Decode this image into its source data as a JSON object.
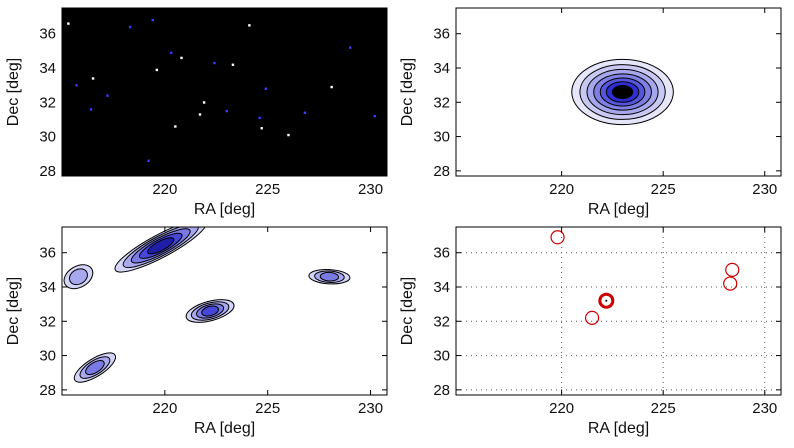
{
  "figure": {
    "colors": {
      "background": "#ffffff",
      "axes_black": "#000000",
      "contour_light": "#c9c9f2",
      "contour_mid": "#8a8ae8",
      "contour_dark": "#2a2ad8",
      "contour_core": "#0a0a66",
      "circle_red": "#cc0000",
      "star_blue": "#3a3aff"
    }
  },
  "chart_data": [
    {
      "id": "panel-a",
      "type": "heatmap",
      "title": "",
      "xlabel": "RA [deg]",
      "ylabel": "Dec [deg]",
      "xlim": [
        215,
        230.8
      ],
      "ylim": [
        27.7,
        37.5
      ],
      "xticks": [
        "220",
        "225",
        "230"
      ],
      "yticks": [
        "28",
        "30",
        "32",
        "34",
        "36"
      ],
      "background": "black",
      "points": [
        {
          "x": 215.3,
          "y": 36.6,
          "c": "white"
        },
        {
          "x": 219.4,
          "y": 36.8,
          "c": "blue"
        },
        {
          "x": 218.3,
          "y": 36.4,
          "c": "blue"
        },
        {
          "x": 224.1,
          "y": 36.5,
          "c": "white"
        },
        {
          "x": 229.0,
          "y": 35.2,
          "c": "blue"
        },
        {
          "x": 220.3,
          "y": 34.9,
          "c": "blue"
        },
        {
          "x": 220.8,
          "y": 34.6,
          "c": "white"
        },
        {
          "x": 222.4,
          "y": 34.3,
          "c": "blue"
        },
        {
          "x": 223.3,
          "y": 34.2,
          "c": "white"
        },
        {
          "x": 219.6,
          "y": 33.9,
          "c": "white"
        },
        {
          "x": 216.5,
          "y": 33.4,
          "c": "white"
        },
        {
          "x": 215.7,
          "y": 33.0,
          "c": "blue"
        },
        {
          "x": 228.1,
          "y": 32.9,
          "c": "white"
        },
        {
          "x": 224.9,
          "y": 32.8,
          "c": "blue"
        },
        {
          "x": 217.2,
          "y": 32.4,
          "c": "blue"
        },
        {
          "x": 221.9,
          "y": 32.0,
          "c": "white"
        },
        {
          "x": 223.0,
          "y": 31.5,
          "c": "blue"
        },
        {
          "x": 216.4,
          "y": 31.6,
          "c": "blue"
        },
        {
          "x": 221.7,
          "y": 31.3,
          "c": "white"
        },
        {
          "x": 224.6,
          "y": 31.1,
          "c": "blue"
        },
        {
          "x": 230.2,
          "y": 31.2,
          "c": "blue"
        },
        {
          "x": 220.5,
          "y": 30.6,
          "c": "white"
        },
        {
          "x": 224.7,
          "y": 30.5,
          "c": "white"
        },
        {
          "x": 226.0,
          "y": 30.1,
          "c": "white"
        },
        {
          "x": 219.2,
          "y": 28.6,
          "c": "blue"
        },
        {
          "x": 226.8,
          "y": 31.4,
          "c": "blue"
        }
      ]
    },
    {
      "id": "panel-b",
      "type": "contour",
      "title": "",
      "xlabel": "RA [deg]",
      "ylabel": "Dec [deg]",
      "xlim": [
        214.8,
        230.8
      ],
      "ylim": [
        27.7,
        37.5
      ],
      "xticks": [
        "220",
        "225",
        "230"
      ],
      "yticks": [
        "28",
        "30",
        "32",
        "34",
        "36"
      ],
      "center": {
        "ra": 223.0,
        "dec": 32.6
      },
      "levels": [
        {
          "ra_halfwidth": 2.5,
          "dec_halfwidth": 1.9,
          "shade": "#e6e6fa"
        },
        {
          "ra_halfwidth": 2.1,
          "dec_halfwidth": 1.6,
          "shade": "#c8c8f3"
        },
        {
          "ra_halfwidth": 1.75,
          "dec_halfwidth": 1.32,
          "shade": "#a6a6ec"
        },
        {
          "ra_halfwidth": 1.42,
          "dec_halfwidth": 1.06,
          "shade": "#8080e4"
        },
        {
          "ra_halfwidth": 1.1,
          "dec_halfwidth": 0.82,
          "shade": "#5656dc"
        },
        {
          "ra_halfwidth": 0.8,
          "dec_halfwidth": 0.6,
          "shade": "#2e2ed2"
        },
        {
          "ra_halfwidth": 0.5,
          "dec_halfwidth": 0.38,
          "shade": "#000000"
        }
      ]
    },
    {
      "id": "panel-c",
      "type": "contour",
      "title": "",
      "xlabel": "RA [deg]",
      "ylabel": "Dec [deg]",
      "xlim": [
        215,
        230.8
      ],
      "ylim": [
        27.7,
        37.5
      ],
      "xticks": [
        "220",
        "225",
        "230"
      ],
      "yticks": [
        "28",
        "30",
        "32",
        "34",
        "36"
      ],
      "blobs": [
        {
          "ra": 219.8,
          "dec": 36.4,
          "length": 5.0,
          "width": 0.55,
          "angle_deg": 28,
          "levels": 5
        },
        {
          "ra": 215.8,
          "dec": 34.6,
          "length": 1.5,
          "width": 0.5,
          "angle_deg": 30,
          "levels": 2
        },
        {
          "ra": 222.2,
          "dec": 32.6,
          "length": 2.4,
          "width": 0.45,
          "angle_deg": 15,
          "levels": 4
        },
        {
          "ra": 228.0,
          "dec": 34.6,
          "length": 2.0,
          "width": 0.3,
          "angle_deg": -3,
          "levels": 3
        },
        {
          "ra": 216.6,
          "dec": 29.3,
          "length": 2.3,
          "width": 0.4,
          "angle_deg": 32,
          "levels": 3
        }
      ]
    },
    {
      "id": "panel-d",
      "type": "scatter",
      "title": "",
      "xlabel": "RA [deg]",
      "ylabel": "Dec [deg]",
      "xlim": [
        214.8,
        230.8
      ],
      "ylim": [
        27.7,
        37.5
      ],
      "xticks": [
        "220",
        "225",
        "230"
      ],
      "yticks": [
        "28",
        "30",
        "32",
        "34",
        "36"
      ],
      "grid": true,
      "points": [
        {
          "ra": 219.8,
          "dec": 36.9,
          "weight": "thin"
        },
        {
          "ra": 228.4,
          "dec": 35.0,
          "weight": "thin"
        },
        {
          "ra": 228.3,
          "dec": 34.2,
          "weight": "thin"
        },
        {
          "ra": 222.2,
          "dec": 33.2,
          "weight": "thick"
        },
        {
          "ra": 221.5,
          "dec": 32.2,
          "weight": "thin"
        }
      ]
    }
  ]
}
